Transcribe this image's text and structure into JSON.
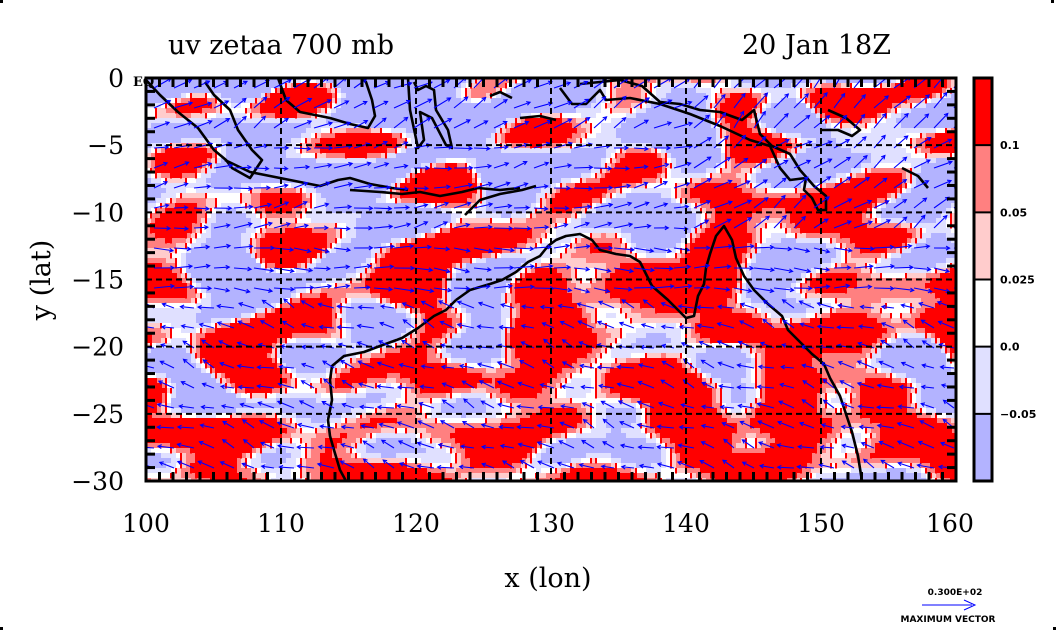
{
  "chart_data": {
    "type": "heatmap",
    "title": "uv zetaa 700 mb",
    "subtitle": "20 Jan 18Z",
    "xlabel": "x (lon)",
    "ylabel": "y (lat)",
    "xlim": [
      100,
      160
    ],
    "ylim": [
      -30,
      0
    ],
    "xticks": [
      100,
      110,
      120,
      130,
      140,
      150,
      160
    ],
    "xtick_labels": [
      "100",
      "110",
      "120",
      "130",
      "140",
      "150",
      "160"
    ],
    "yticks": [
      0,
      -5,
      -10,
      -15,
      -20,
      -25,
      -30
    ],
    "ytick_labels": [
      "0",
      "−5",
      "−10",
      "−15",
      "−20",
      "−25",
      "−30"
    ],
    "equator_label": "EQ",
    "grid": true,
    "overlay": "wind vectors (uv) and coastlines",
    "colorbar": {
      "levels": [
        -0.05,
        0.0,
        0.025,
        0.05,
        0.1
      ],
      "labels": [
        "0.1",
        "0.05",
        "0.025",
        "0.0",
        "−0.05"
      ],
      "colors": [
        "#ff0000",
        "#ff8080",
        "#ffcccc",
        "#ffffff",
        "#e0e0ff",
        "#b3b3ff"
      ],
      "placement": "right"
    },
    "max_vector": {
      "value_label": "0.300E+02",
      "caption": "MAXIMUM VECTOR"
    }
  },
  "colors": {
    "vector": "#0000ff",
    "contour": "#ff0000",
    "coast": "#000000",
    "frame": "#000000"
  }
}
